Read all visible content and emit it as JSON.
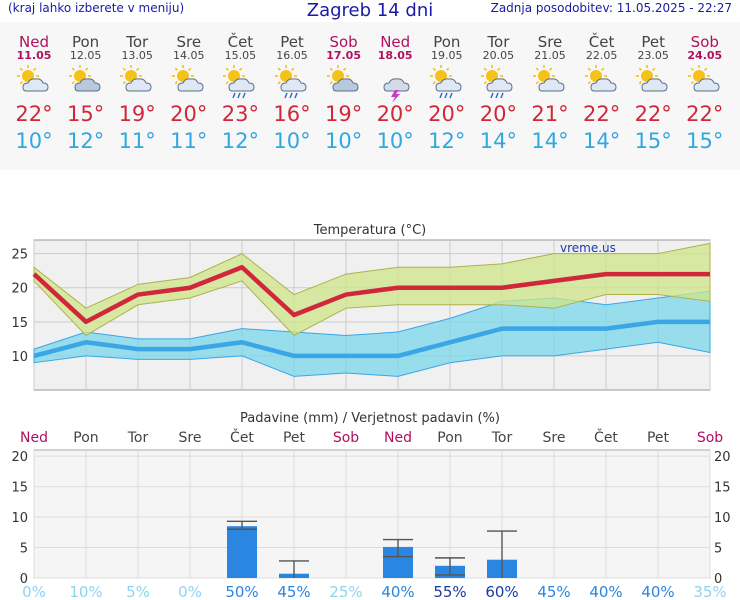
{
  "header": {
    "menu_hint": "(kraj lahko izberete v meniju)",
    "title": "Zagreb 14 dni",
    "updated": "Zadnja posodobitev: 11.05.2025 - 22:27"
  },
  "colors": {
    "weekend": "#b0105e",
    "weekday": "#444444",
    "tmax": "#d0283a",
    "tmin": "#31a7e0",
    "bar": "#2a86e0"
  },
  "days": [
    {
      "name": "Ned",
      "date": "11.05",
      "weekend": true,
      "icon": "partly-cloudy-sun-icon",
      "tmax": "22°",
      "tmin": "10°"
    },
    {
      "name": "Pon",
      "date": "12.05",
      "weekend": false,
      "icon": "cloudy-sun-icon",
      "tmax": "15°",
      "tmin": "12°"
    },
    {
      "name": "Tor",
      "date": "13.05",
      "weekend": false,
      "icon": "partly-cloudy-sun-icon",
      "tmax": "19°",
      "tmin": "11°"
    },
    {
      "name": "Sre",
      "date": "14.05",
      "weekend": false,
      "icon": "partly-cloudy-sun-icon",
      "tmax": "20°",
      "tmin": "11°"
    },
    {
      "name": "Čet",
      "date": "15.05",
      "weekend": false,
      "icon": "sun-rain-icon",
      "tmax": "23°",
      "tmin": "12°"
    },
    {
      "name": "Pet",
      "date": "16.05",
      "weekend": false,
      "icon": "sun-rain-icon",
      "tmax": "16°",
      "tmin": "10°"
    },
    {
      "name": "Sob",
      "date": "17.05",
      "weekend": true,
      "icon": "cloudy-sun-icon",
      "tmax": "19°",
      "tmin": "10°"
    },
    {
      "name": "Ned",
      "date": "18.05",
      "weekend": true,
      "icon": "thunderstorm-icon",
      "tmax": "20°",
      "tmin": "10°"
    },
    {
      "name": "Pon",
      "date": "19.05",
      "weekend": false,
      "icon": "sun-rain-icon",
      "tmax": "20°",
      "tmin": "12°"
    },
    {
      "name": "Tor",
      "date": "20.05",
      "weekend": false,
      "icon": "sun-rain-icon",
      "tmax": "20°",
      "tmin": "14°"
    },
    {
      "name": "Sre",
      "date": "21.05",
      "weekend": false,
      "icon": "partly-cloudy-sun-icon",
      "tmax": "21°",
      "tmin": "14°"
    },
    {
      "name": "Čet",
      "date": "22.05",
      "weekend": false,
      "icon": "partly-cloudy-sun-icon",
      "tmax": "22°",
      "tmin": "14°"
    },
    {
      "name": "Pet",
      "date": "23.05",
      "weekend": false,
      "icon": "partly-cloudy-sun-icon",
      "tmax": "22°",
      "tmin": "15°"
    },
    {
      "name": "Sob",
      "date": "24.05",
      "weekend": true,
      "icon": "partly-cloudy-sun-icon",
      "tmax": "22°",
      "tmin": "15°"
    }
  ],
  "chart_data": [
    {
      "type": "line",
      "title": "Temperatura (°C)",
      "watermark": "vreme.us",
      "ylim": [
        5,
        27
      ],
      "yticks": [
        10,
        15,
        20,
        25
      ],
      "series": [
        {
          "name": "max",
          "values": [
            22,
            15,
            19,
            20,
            23,
            16,
            19,
            20,
            20,
            20,
            21,
            22,
            22,
            22
          ],
          "band_high": [
            23,
            17,
            20.5,
            21.5,
            25,
            19,
            22,
            23,
            23,
            23.5,
            25,
            25,
            25,
            26.5
          ],
          "band_low": [
            21,
            13,
            17.5,
            18.5,
            21,
            13,
            17,
            17.5,
            17.5,
            17.5,
            17,
            19,
            19,
            18
          ]
        },
        {
          "name": "min",
          "values": [
            10,
            12,
            11,
            11,
            12,
            10,
            10,
            10,
            12,
            14,
            14,
            14,
            15,
            15
          ],
          "band_high": [
            11,
            13.5,
            12.5,
            12.5,
            14,
            13.5,
            13,
            13.5,
            15.5,
            18,
            18.5,
            17.5,
            18.5,
            19.5
          ],
          "band_low": [
            9,
            10,
            9.5,
            9.5,
            10,
            7,
            7.5,
            7,
            9,
            10,
            10,
            11,
            12,
            10.5
          ]
        }
      ]
    },
    {
      "type": "bar",
      "title": "Padavine (mm) / Verjetnost padavin (%)",
      "categories": [
        "Ned",
        "Pon",
        "Tor",
        "Sre",
        "Čet",
        "Pet",
        "Sob",
        "Ned",
        "Pon",
        "Tor",
        "Sre",
        "Čet",
        "Pet",
        "Sob"
      ],
      "values": [
        0,
        0,
        0,
        0,
        8.5,
        0.7,
        0,
        5.1,
        2.0,
        3.0,
        0,
        0,
        0,
        0
      ],
      "err_low": [
        0,
        0,
        0,
        0,
        8,
        0,
        0,
        3.5,
        0.5,
        0,
        0,
        0,
        0,
        0
      ],
      "err_high": [
        0,
        0,
        0,
        0,
        9.3,
        2.8,
        0,
        6.3,
        3.3,
        7.7,
        0,
        0,
        0,
        0
      ],
      "probability": [
        "0%",
        "10%",
        "5%",
        "0%",
        "50%",
        "45%",
        "25%",
        "40%",
        "55%",
        "60%",
        "45%",
        "40%",
        "40%",
        "35%"
      ],
      "prob_values": [
        0,
        10,
        5,
        0,
        50,
        45,
        25,
        40,
        55,
        60,
        45,
        40,
        40,
        35
      ],
      "ylim": [
        0,
        21
      ],
      "yticks": [
        0,
        5,
        10,
        15,
        20
      ]
    }
  ]
}
